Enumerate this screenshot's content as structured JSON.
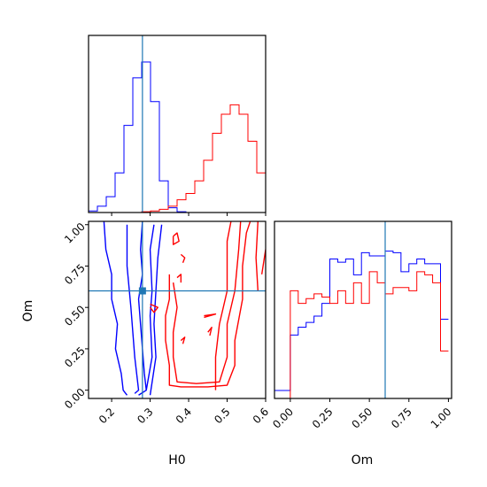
{
  "colors": {
    "series_a": "#0000ff",
    "series_b": "#ff0000",
    "truth": "#1f77b4",
    "frame": "#000000"
  },
  "chart_data": [
    {
      "type": "histogram",
      "panel": "H0 marginal",
      "xlim": [
        0.14,
        0.6
      ],
      "x_edges": [
        0.14,
        0.163,
        0.186,
        0.209,
        0.232,
        0.255,
        0.278,
        0.301,
        0.324,
        0.347,
        0.37,
        0.393,
        0.416,
        0.439,
        0.462,
        0.485,
        0.508,
        0.531,
        0.554,
        0.577,
        0.6
      ],
      "series": [
        {
          "color": "#0000ff",
          "values": [
            0.01,
            0.04,
            0.1,
            0.25,
            0.55,
            0.85,
            0.95,
            0.7,
            0.2,
            0.03,
            0.005,
            0,
            0,
            0,
            0,
            0,
            0,
            0,
            0,
            0
          ]
        },
        {
          "color": "#ff0000",
          "values": [
            0,
            0,
            0,
            0,
            0,
            0,
            0.005,
            0.01,
            0.02,
            0.04,
            0.08,
            0.12,
            0.2,
            0.33,
            0.5,
            0.62,
            0.68,
            0.62,
            0.45,
            0.25
          ]
        }
      ],
      "truth_x": 0.28
    },
    {
      "type": "contour",
      "panel": "H0 vs Om",
      "xlabel": "H0",
      "ylabel": "Om",
      "xlim": [
        0.14,
        0.6
      ],
      "ylim": [
        -0.05,
        1.02
      ],
      "x_ticks": [
        "0.2",
        "0.3",
        "0.4",
        "0.5",
        "0.6"
      ],
      "x_tick_values": [
        0.2,
        0.3,
        0.4,
        0.5,
        0.6
      ],
      "y_ticks": [
        "0.00",
        "0.25",
        "0.50",
        "0.75",
        "1.00"
      ],
      "y_tick_values": [
        0,
        0.25,
        0.5,
        0.75,
        1.0
      ],
      "truth": [
        0.28,
        0.6
      ],
      "series": [
        {
          "color": "#0000ff",
          "contours": [
            [
              [
                0.18,
                1.02
              ],
              [
                0.185,
                0.85
              ],
              [
                0.2,
                0.7
              ],
              [
                0.2,
                0.55
              ],
              [
                0.215,
                0.4
              ],
              [
                0.21,
                0.25
              ],
              [
                0.225,
                0.1
              ],
              [
                0.23,
                0.0
              ],
              [
                0.24,
                -0.03
              ]
            ],
            [
              [
                0.28,
                1.02
              ],
              [
                0.275,
                0.85
              ],
              [
                0.28,
                0.7
              ],
              [
                0.27,
                0.55
              ],
              [
                0.275,
                0.4
              ],
              [
                0.28,
                0.25
              ],
              [
                0.285,
                0.1
              ],
              [
                0.29,
                0.0
              ],
              [
                0.27,
                -0.03
              ]
            ],
            [
              [
                0.24,
                1.0
              ],
              [
                0.24,
                0.75
              ],
              [
                0.25,
                0.5
              ],
              [
                0.26,
                0.2
              ],
              [
                0.27,
                0.0
              ],
              [
                0.26,
                -0.02
              ]
            ],
            [
              [
                0.31,
                1.0
              ],
              [
                0.3,
                0.85
              ],
              [
                0.305,
                0.6
              ],
              [
                0.3,
                0.45
              ],
              [
                0.305,
                0.2
              ],
              [
                0.29,
                0.0
              ]
            ],
            [
              [
                0.33,
                1.0
              ],
              [
                0.32,
                0.8
              ],
              [
                0.315,
                0.6
              ],
              [
                0.31,
                0.4
              ],
              [
                0.315,
                0.2
              ],
              [
                0.3,
                -0.03
              ]
            ]
          ]
        },
        {
          "color": "#ff0000",
          "contours": [
            [
              [
                0.35,
                0.7
              ],
              [
                0.35,
                0.55
              ],
              [
                0.34,
                0.45
              ],
              [
                0.34,
                0.3
              ],
              [
                0.35,
                0.15
              ],
              [
                0.35,
                0.03
              ],
              [
                0.38,
                0.02
              ],
              [
                0.45,
                0.02
              ],
              [
                0.5,
                0.03
              ],
              [
                0.52,
                0.15
              ],
              [
                0.52,
                0.3
              ],
              [
                0.54,
                0.55
              ],
              [
                0.54,
                0.75
              ],
              [
                0.55,
                0.95
              ],
              [
                0.56,
                1.02
              ]
            ],
            [
              [
                0.36,
                0.65
              ],
              [
                0.37,
                0.5
              ],
              [
                0.36,
                0.35
              ],
              [
                0.36,
                0.2
              ],
              [
                0.37,
                0.05
              ],
              [
                0.42,
                0.04
              ],
              [
                0.48,
                0.05
              ],
              [
                0.5,
                0.2
              ],
              [
                0.5,
                0.4
              ],
              [
                0.52,
                0.6
              ],
              [
                0.53,
                0.85
              ],
              [
                0.535,
                1.02
              ]
            ],
            [
              [
                0.47,
                0.0
              ],
              [
                0.47,
                0.2
              ],
              [
                0.48,
                0.4
              ],
              [
                0.5,
                0.6
              ],
              [
                0.5,
                0.9
              ],
              [
                0.51,
                1.02
              ]
            ],
            [
              [
                0.58,
                1.02
              ],
              [
                0.575,
                0.8
              ],
              [
                0.58,
                0.6
              ]
            ],
            [
              [
                0.6,
                0.85
              ],
              [
                0.59,
                0.7
              ]
            ],
            [
              [
                0.3,
                0.52
              ],
              [
                0.32,
                0.5
              ],
              [
                0.31,
                0.47
              ],
              [
                0.3,
                0.5
              ]
            ],
            [
              [
                0.36,
                0.93
              ],
              [
                0.37,
                0.95
              ],
              [
                0.375,
                0.9
              ],
              [
                0.36,
                0.88
              ],
              [
                0.36,
                0.93
              ]
            ],
            [
              [
                0.38,
                0.82
              ],
              [
                0.39,
                0.8
              ],
              [
                0.385,
                0.77
              ]
            ],
            [
              [
                0.37,
                0.68
              ],
              [
                0.38,
                0.7
              ],
              [
                0.38,
                0.65
              ]
            ],
            [
              [
                0.44,
                0.45
              ],
              [
                0.47,
                0.46
              ],
              [
                0.44,
                0.44
              ]
            ],
            [
              [
                0.38,
                0.3
              ],
              [
                0.39,
                0.32
              ],
              [
                0.385,
                0.28
              ]
            ],
            [
              [
                0.45,
                0.35
              ],
              [
                0.46,
                0.38
              ],
              [
                0.455,
                0.33
              ]
            ]
          ]
        }
      ]
    },
    {
      "type": "histogram",
      "panel": "Om marginal",
      "xlabel": "Om",
      "xlim": [
        -0.1,
        1.02
      ],
      "x_ticks": [
        "0.00",
        "0.25",
        "0.50",
        "0.75",
        "1.00"
      ],
      "x_tick_values": [
        0,
        0.25,
        0.5,
        0.75,
        1.0
      ],
      "x_edges": [
        -0.1,
        0.0,
        0.05,
        0.1,
        0.15,
        0.2,
        0.25,
        0.3,
        0.35,
        0.4,
        0.45,
        0.5,
        0.55,
        0.6,
        0.65,
        0.7,
        0.75,
        0.8,
        0.85,
        0.9,
        0.95,
        1.0
      ],
      "series": [
        {
          "color": "#0000ff",
          "values": [
            0.05,
            0.4,
            0.45,
            0.48,
            0.52,
            0.6,
            0.88,
            0.86,
            0.88,
            0.78,
            0.92,
            0.9,
            0.9,
            0.93,
            0.92,
            0.8,
            0.85,
            0.88,
            0.85,
            0.85,
            0.5
          ]
        },
        {
          "color": "#ff0000",
          "values": [
            0,
            0.68,
            0.6,
            0.63,
            0.66,
            0.64,
            0.6,
            0.68,
            0.6,
            0.73,
            0.6,
            0.8,
            0.73,
            0.66,
            0.7,
            0.7,
            0.68,
            0.8,
            0.78,
            0.73,
            0.3
          ]
        }
      ],
      "truth_x": 0.6
    }
  ]
}
